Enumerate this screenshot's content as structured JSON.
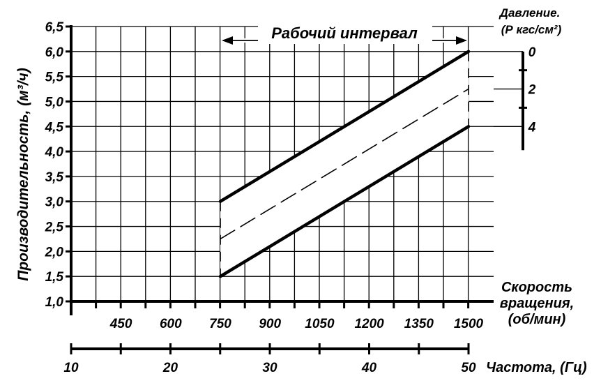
{
  "chart_data": {
    "type": "line",
    "ylabel": "Производительность, (м³/ч)",
    "ylim": [
      1.0,
      6.5
    ],
    "y_ticks": [
      "1,0",
      "1,5",
      "2,0",
      "2,5",
      "3,0",
      "3,5",
      "4,0",
      "4,5",
      "5,0",
      "5,5",
      "6,0",
      "6,5"
    ],
    "speed_axis": {
      "label_lines": [
        "Скорость",
        "вращения,",
        "(об/мин)"
      ],
      "ticks": [
        "450",
        "600",
        "750",
        "900",
        "1050",
        "1200",
        "1350",
        "1500"
      ]
    },
    "frequency_axis": {
      "label": "Частота, (Гц)",
      "ticks": [
        "10",
        "20",
        "30",
        "40",
        "50"
      ]
    },
    "pressure_axis": {
      "label_lines": [
        "Давление.",
        "(Р кгс/см²)"
      ],
      "ticks": [
        "0",
        "2",
        "4"
      ]
    },
    "working_interval_label": "Рабочий интервал",
    "working_interval": [
      750,
      1500
    ],
    "series": [
      {
        "pressure": 0,
        "style": "solid",
        "x": [
          750,
          1500
        ],
        "y": [
          3.0,
          6.0
        ]
      },
      {
        "pressure": 2,
        "style": "dashed",
        "x": [
          750,
          1500
        ],
        "y": [
          2.25,
          5.25
        ]
      },
      {
        "pressure": 4,
        "style": "solid",
        "x": [
          750,
          1500
        ],
        "y": [
          1.5,
          4.5
        ]
      }
    ],
    "grid": true
  }
}
